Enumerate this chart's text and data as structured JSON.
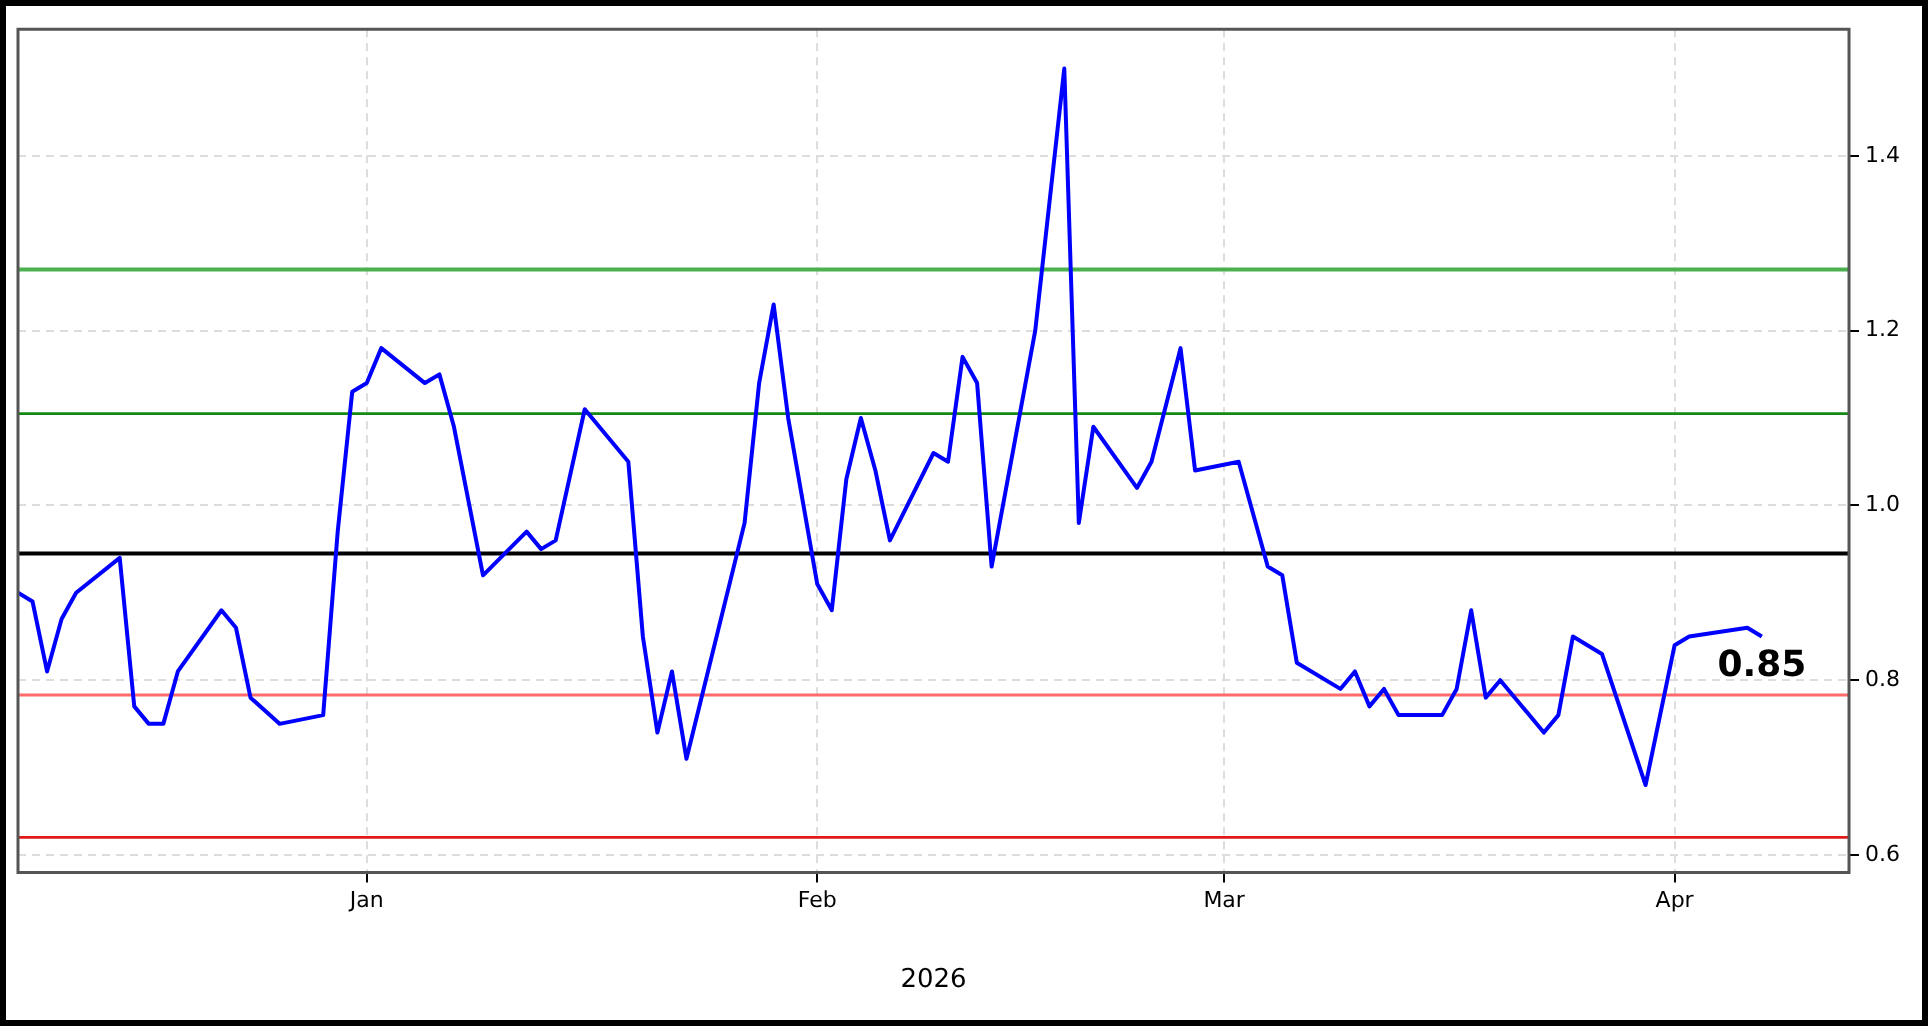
{
  "chart_data": {
    "type": "line",
    "xlabel": "2026",
    "x": [
      "2025-12-08",
      "2025-12-09",
      "2025-12-10",
      "2025-12-11",
      "2025-12-12",
      "2025-12-15",
      "2025-12-16",
      "2025-12-17",
      "2025-12-18",
      "2025-12-19",
      "2025-12-22",
      "2025-12-23",
      "2025-12-24",
      "2025-12-26",
      "2025-12-29",
      "2025-12-30",
      "2025-12-31",
      "2026-01-01",
      "2026-01-02",
      "2026-01-05",
      "2026-01-06",
      "2026-01-07",
      "2026-01-09",
      "2026-01-12",
      "2026-01-13",
      "2026-01-14",
      "2026-01-16",
      "2026-01-19",
      "2026-01-20",
      "2026-01-21",
      "2026-01-22",
      "2026-01-23",
      "2026-01-27",
      "2026-01-28",
      "2026-01-29",
      "2026-01-30",
      "2026-02-01",
      "2026-02-02",
      "2026-02-03",
      "2026-02-04",
      "2026-02-05",
      "2026-02-06",
      "2026-02-09",
      "2026-02-10",
      "2026-02-11",
      "2026-02-12",
      "2026-02-13",
      "2026-02-16",
      "2026-02-18",
      "2026-02-19",
      "2026-02-20",
      "2026-02-23",
      "2026-02-24",
      "2026-02-26",
      "2026-02-27",
      "2026-03-02",
      "2026-03-04",
      "2026-03-05",
      "2026-03-06",
      "2026-03-09",
      "2026-03-10",
      "2026-03-11",
      "2026-03-12",
      "2026-03-13",
      "2026-03-16",
      "2026-03-17",
      "2026-03-18",
      "2026-03-19",
      "2026-03-20",
      "2026-03-23",
      "2026-03-24",
      "2026-03-25",
      "2026-03-27",
      "2026-03-30",
      "2026-04-01",
      "2026-04-02",
      "2026-04-06",
      "2026-04-07"
    ],
    "series": [
      {
        "color": "#0000ff",
        "values": [
          0.9,
          0.89,
          0.81,
          0.87,
          0.9,
          0.94,
          0.77,
          0.75,
          0.75,
          0.81,
          0.88,
          0.86,
          0.78,
          0.75,
          0.76,
          0.97,
          1.13,
          1.14,
          1.18,
          1.14,
          1.15,
          1.09,
          0.92,
          0.97,
          0.95,
          0.96,
          1.11,
          1.05,
          0.85,
          0.74,
          0.81,
          0.71,
          0.98,
          1.14,
          1.23,
          1.1,
          0.91,
          0.88,
          1.03,
          1.1,
          1.04,
          0.96,
          1.06,
          1.05,
          1.17,
          1.14,
          0.93,
          1.2,
          1.5,
          0.98,
          1.09,
          1.02,
          1.05,
          1.18,
          1.04,
          1.05,
          0.93,
          0.92,
          0.82,
          0.79,
          0.81,
          0.77,
          0.79,
          0.76,
          0.76,
          0.79,
          0.88,
          0.78,
          0.8,
          0.74,
          0.76,
          0.85,
          0.83,
          0.68,
          0.84,
          0.85,
          0.86,
          0.85
        ]
      }
    ],
    "xlim": [
      "2025-12-08",
      "2026-04-13"
    ],
    "xticks": [
      {
        "value": "2026-01-01",
        "label": "Jan"
      },
      {
        "value": "2026-02-01",
        "label": "Feb"
      },
      {
        "value": "2026-03-01",
        "label": "Mar"
      },
      {
        "value": "2026-04-01",
        "label": "Apr"
      }
    ],
    "ylim": [
      0.58,
      1.545
    ],
    "yticks": [
      0.6,
      0.8,
      {
        "value": 1,
        "label": "1.0"
      },
      1.2,
      1.4
    ],
    "grid": true,
    "marker": "none",
    "line_style": "solid",
    "ref_lines": [
      {
        "axis": "y",
        "value": 1.27,
        "color": "#4caf50"
      },
      {
        "axis": "y",
        "value": 1.105,
        "color": "#138a13"
      },
      {
        "axis": "y",
        "value": 0.945,
        "color": "#000000"
      },
      {
        "axis": "y",
        "value": 0.783,
        "color": "#ff6b6b"
      },
      {
        "axis": "y",
        "value": 0.62,
        "color": "#e01818"
      }
    ],
    "annotations": [
      {
        "text": "0.85",
        "x": "2026-04-07",
        "y": 0.85
      }
    ]
  }
}
